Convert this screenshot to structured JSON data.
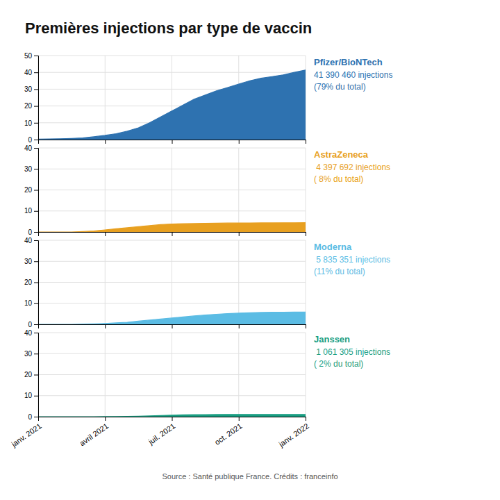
{
  "chart_data": [
    {
      "type": "area",
      "title": "Premières injections par type de vaccin",
      "x": [
        0,
        0.5,
        1,
        1.5,
        2,
        2.5,
        3,
        3.5,
        4,
        4.5,
        5,
        5.5,
        6,
        6.5,
        7,
        7.5,
        8,
        8.5,
        9,
        9.5,
        10,
        10.5,
        11,
        11.5,
        12
      ],
      "series": [
        {
          "name": "Pfizer/BioNTech",
          "color": "#2e72b0",
          "values": [
            0.3,
            0.4,
            0.5,
            0.7,
            1.0,
            1.7,
            2.5,
            3.5,
            5.0,
            7.0,
            10.0,
            13.5,
            17.0,
            20.5,
            24.0,
            26.5,
            29.0,
            31.0,
            33.0,
            35.0,
            36.5,
            37.5,
            38.5,
            40.0,
            41.4
          ]
        }
      ],
      "annotations": [
        "41 390 460 injections",
        "(79% du total)"
      ],
      "xlim": [
        0,
        12
      ],
      "xticks": [
        0,
        3,
        6,
        9,
        12
      ],
      "ylim": [
        0,
        50
      ],
      "yticks": [
        0,
        10,
        20,
        30,
        40,
        50
      ],
      "grid": true,
      "tick_labels": "y"
    },
    {
      "type": "area",
      "x": [
        0,
        0.5,
        1,
        1.5,
        2,
        2.5,
        3,
        3.5,
        4,
        4.5,
        5,
        5.5,
        6,
        6.5,
        7,
        7.5,
        8,
        8.5,
        9,
        9.5,
        10,
        10.5,
        11,
        11.5,
        12
      ],
      "series": [
        {
          "name": "AstraZeneca",
          "color": "#e8a020",
          "values": [
            0.0,
            0.0,
            0.0,
            0.0,
            0.2,
            0.5,
            1.0,
            1.5,
            2.0,
            2.5,
            3.0,
            3.5,
            3.8,
            3.9,
            4.0,
            4.1,
            4.2,
            4.25,
            4.3,
            4.3,
            4.32,
            4.33,
            4.35,
            4.37,
            4.4
          ]
        }
      ],
      "annotations": [
        " 4 397 692 injections",
        "( 8% du total)"
      ],
      "xlim": [
        0,
        12
      ],
      "xticks": [
        0,
        3,
        6,
        9,
        12
      ],
      "ylim": [
        0,
        40
      ],
      "yticks": [
        0,
        10,
        20,
        30,
        40
      ],
      "grid": true,
      "tick_labels": "y"
    },
    {
      "type": "area",
      "x": [
        0,
        0.5,
        1,
        1.5,
        2,
        2.5,
        3,
        3.5,
        4,
        4.5,
        5,
        5.5,
        6,
        6.5,
        7,
        7.5,
        8,
        8.5,
        9,
        9.5,
        10,
        10.5,
        11,
        11.5,
        12
      ],
      "series": [
        {
          "name": "Moderna",
          "color": "#5bbce4",
          "values": [
            0.0,
            0.0,
            0.0,
            0.0,
            0.1,
            0.2,
            0.4,
            0.7,
            1.0,
            1.5,
            2.0,
            2.5,
            3.0,
            3.5,
            4.0,
            4.4,
            4.8,
            5.1,
            5.3,
            5.5,
            5.65,
            5.72,
            5.78,
            5.82,
            5.84
          ]
        }
      ],
      "annotations": [
        " 5 835 351 injections",
        "(11% du total)"
      ],
      "xlim": [
        0,
        12
      ],
      "xticks": [
        0,
        3,
        6,
        9,
        12
      ],
      "ylim": [
        0,
        40
      ],
      "yticks": [
        0,
        10,
        20,
        30,
        40
      ],
      "grid": true,
      "tick_labels": "y"
    },
    {
      "type": "area",
      "x": [
        0,
        0.5,
        1,
        1.5,
        2,
        2.5,
        3,
        3.5,
        4,
        4.5,
        5,
        5.5,
        6,
        6.5,
        7,
        7.5,
        8,
        8.5,
        9,
        9.5,
        10,
        10.5,
        11,
        11.5,
        12
      ],
      "series": [
        {
          "name": "Janssen",
          "color": "#1a9e82",
          "values": [
            0.0,
            0.0,
            0.0,
            0.0,
            0.0,
            0.0,
            0.02,
            0.05,
            0.1,
            0.2,
            0.35,
            0.55,
            0.75,
            0.88,
            0.95,
            1.0,
            1.02,
            1.04,
            1.05,
            1.06,
            1.06,
            1.06,
            1.06,
            1.06,
            1.06
          ]
        }
      ],
      "annotations": [
        " 1 061 305 injections",
        "( 2% du total)",
        "Source : Santé publique France. Crédits : franceinfo"
      ],
      "xlim": [
        0,
        12
      ],
      "xticks": [
        {
          "value": 0,
          "label": "janv. 2021"
        },
        {
          "value": 3,
          "label": "avril 2021"
        },
        {
          "value": 6,
          "label": "juil. 2021"
        },
        {
          "value": 9,
          "label": "oct. 2021"
        },
        {
          "value": 12,
          "label": "janv. 2022"
        }
      ],
      "ylim": [
        0,
        40
      ],
      "yticks": [
        0,
        10,
        20,
        30,
        40
      ],
      "grid": true
    }
  ]
}
